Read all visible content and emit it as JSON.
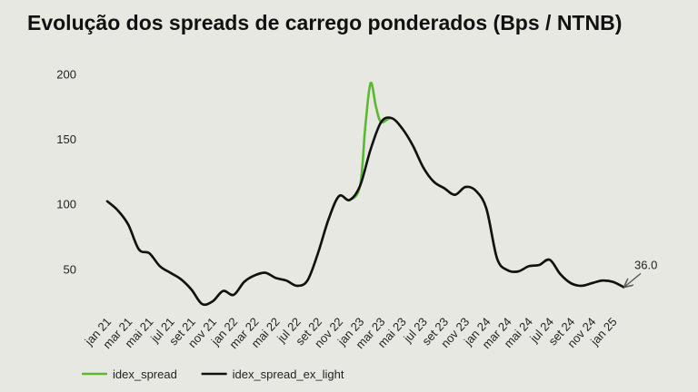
{
  "title": "Evolução dos spreads de carrego ponderados (Bps / NTNB)",
  "colors": {
    "idex_spread": "#5cb82e",
    "idex_spread_ex_light": "#111111",
    "annotation_arrow": "#555555"
  },
  "chart_data": {
    "type": "line",
    "title": "Evolução dos spreads de carrego ponderados (Bps / NTNB)",
    "xlabel": "",
    "ylabel": "",
    "ylim": [
      16,
      215
    ],
    "yticks": [
      50,
      100,
      150,
      200
    ],
    "xticks": [
      "jan 21",
      "mar 21",
      "mai 21",
      "jul 21",
      "set 21",
      "nov 21",
      "jan 22",
      "mar 22",
      "mai 22",
      "jul 22",
      "set 22",
      "nov 22",
      "jan 23",
      "mar 23",
      "mai 23",
      "jul 23",
      "set 23",
      "nov 23",
      "jan 24",
      "mar 24",
      "mai 24",
      "jul 24",
      "set 24",
      "nov 24",
      "jan 25"
    ],
    "grid": false,
    "legend": "bottom-left",
    "series": [
      {
        "name": "idex_spread",
        "points": [
          [
            0,
            102
          ],
          [
            1,
            95
          ],
          [
            2,
            84
          ],
          [
            3,
            65
          ],
          [
            4,
            62
          ],
          [
            5,
            52
          ],
          [
            6,
            47
          ],
          [
            7,
            42
          ],
          [
            8,
            34
          ],
          [
            9,
            23
          ],
          [
            10,
            25
          ],
          [
            11,
            33
          ],
          [
            12,
            30
          ],
          [
            13,
            40
          ],
          [
            14,
            45
          ],
          [
            15,
            47
          ],
          [
            16,
            43
          ],
          [
            17,
            41
          ],
          [
            18,
            37
          ],
          [
            19,
            41
          ],
          [
            20,
            62
          ],
          [
            21,
            88
          ],
          [
            22,
            106
          ],
          [
            23,
            103
          ],
          [
            24,
            114
          ],
          [
            24.5,
            160
          ],
          [
            25,
            193
          ],
          [
            25.5,
            175
          ],
          [
            26,
            163
          ],
          [
            27,
            166
          ],
          [
            28,
            158
          ],
          [
            29,
            145
          ],
          [
            30,
            128
          ],
          [
            31,
            117
          ],
          [
            32,
            112
          ],
          [
            33,
            107
          ],
          [
            34,
            113
          ],
          [
            35,
            110
          ],
          [
            36,
            96
          ],
          [
            37,
            58
          ],
          [
            38,
            49
          ],
          [
            39,
            48
          ],
          [
            40,
            52
          ],
          [
            41,
            53
          ],
          [
            42,
            57
          ],
          [
            43,
            46
          ],
          [
            44,
            39
          ],
          [
            45,
            37
          ],
          [
            46,
            39
          ],
          [
            47,
            41
          ],
          [
            48,
            40
          ],
          [
            49,
            36
          ]
        ]
      },
      {
        "name": "idex_spread_ex_light",
        "points": [
          [
            0,
            102
          ],
          [
            1,
            95
          ],
          [
            2,
            84
          ],
          [
            3,
            65
          ],
          [
            4,
            62
          ],
          [
            5,
            52
          ],
          [
            6,
            47
          ],
          [
            7,
            42
          ],
          [
            8,
            34
          ],
          [
            9,
            23
          ],
          [
            10,
            25
          ],
          [
            11,
            33
          ],
          [
            12,
            30
          ],
          [
            13,
            40
          ],
          [
            14,
            45
          ],
          [
            15,
            47
          ],
          [
            16,
            43
          ],
          [
            17,
            41
          ],
          [
            18,
            37
          ],
          [
            19,
            41
          ],
          [
            20,
            62
          ],
          [
            21,
            88
          ],
          [
            22,
            106
          ],
          [
            23,
            103
          ],
          [
            24,
            114
          ],
          [
            25,
            142
          ],
          [
            26,
            163
          ],
          [
            27,
            166
          ],
          [
            28,
            158
          ],
          [
            29,
            145
          ],
          [
            30,
            128
          ],
          [
            31,
            117
          ],
          [
            32,
            112
          ],
          [
            33,
            107
          ],
          [
            34,
            113
          ],
          [
            35,
            110
          ],
          [
            36,
            96
          ],
          [
            37,
            58
          ],
          [
            38,
            49
          ],
          [
            39,
            48
          ],
          [
            40,
            52
          ],
          [
            41,
            53
          ],
          [
            42,
            57
          ],
          [
            43,
            46
          ],
          [
            44,
            39
          ],
          [
            45,
            37
          ],
          [
            46,
            39
          ],
          [
            47,
            41
          ],
          [
            48,
            40
          ],
          [
            49,
            36
          ]
        ]
      }
    ],
    "annotation": {
      "text": "36.0",
      "x": 49,
      "y": 36
    }
  }
}
